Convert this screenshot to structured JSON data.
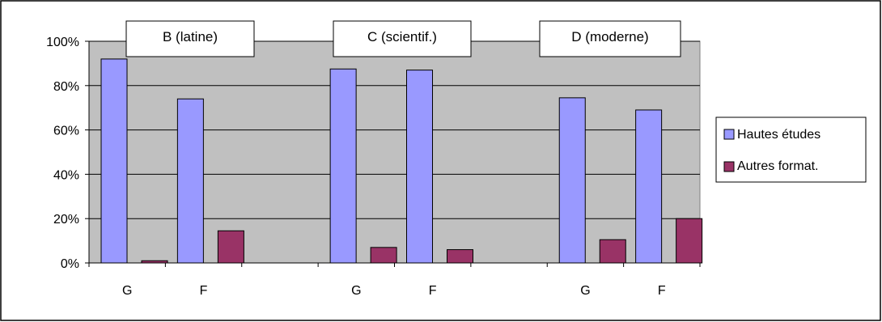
{
  "chart_data": {
    "type": "bar",
    "x": [
      "G",
      "F",
      "",
      "G",
      "F",
      "",
      "G",
      "F"
    ],
    "group_titles": [
      "B (latine)",
      "C (scientif.)",
      "D (moderne)"
    ],
    "series": [
      {
        "name": "Hautes études",
        "color": "#9999FF",
        "values": [
          92,
          74,
          null,
          87.5,
          87,
          null,
          74.5,
          69
        ]
      },
      {
        "name": "Autres format.",
        "color": "#993366",
        "values": [
          1,
          14.5,
          null,
          7,
          6,
          null,
          10.5,
          20
        ]
      }
    ],
    "ylim": [
      0,
      100
    ],
    "yticks": [
      "0%",
      "20%",
      "40%",
      "60%",
      "80%",
      "100%"
    ],
    "ytick_values": [
      0,
      20,
      40,
      60,
      80,
      100
    ],
    "grid": true,
    "plot_background": "#C0C0C0",
    "legend_position": "right"
  }
}
